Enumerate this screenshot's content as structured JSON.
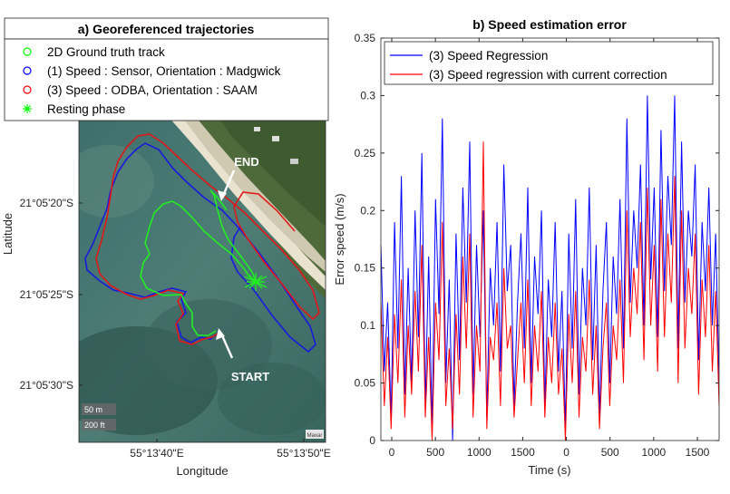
{
  "chart_data": [
    {
      "type": "map",
      "title": "a) Georeferenced trajectories",
      "xlabel": "Longitude",
      "ylabel": "Latitude",
      "x_ticks": [
        "55°13'40\"E",
        "55°13'50\"E"
      ],
      "y_ticks": [
        "21°05'20\"S",
        "21°05'25\"S",
        "21°05'30\"S"
      ],
      "legend": [
        {
          "label": "2D Ground truth track",
          "color": "#00ff00",
          "marker": "circle"
        },
        {
          "label": "(1) Speed : Sensor, Orientation : Madgwick",
          "color": "#0000ff",
          "marker": "circle"
        },
        {
          "label": "(3) Speed : ODBA, Orientation : SAAM",
          "color": "#ff0000",
          "marker": "circle"
        },
        {
          "label": "Resting phase",
          "color": "#00ff00",
          "marker": "asterisk"
        }
      ],
      "annotations": {
        "end": "END",
        "start": "START"
      },
      "scale": {
        "m": "50 m",
        "ft": "200 ft"
      },
      "attribution": "Maxar",
      "colors": {
        "ground_truth": "#22ee22",
        "madgwick": "#1a1adc",
        "saam": "#e01818"
      }
    },
    {
      "type": "line",
      "title": "b) Speed estimation error",
      "xlabel": "Time (s)",
      "ylabel": "Error speed (m/s)",
      "ylim": [
        0,
        0.35
      ],
      "x_tick_labels": [
        "0",
        "500",
        "1000",
        "1500",
        "0",
        "500",
        "1000",
        "1500"
      ],
      "y_tick_labels": [
        "0",
        "0.05",
        "0.1",
        "0.15",
        "0.2",
        "0.25",
        "0.3",
        "0.35"
      ],
      "grid": false,
      "legend_position": "top",
      "series": [
        {
          "name": "(3) Speed Regression",
          "color": "#0000ff",
          "values": [
            0.17,
            0.06,
            0.12,
            0.02,
            0.19,
            0.08,
            0.23,
            0.04,
            0.15,
            0.05,
            0.2,
            0.09,
            0.25,
            0.03,
            0.16,
            0.01,
            0.21,
            0.11,
            0.28,
            0.05,
            0.14,
            0.0,
            0.18,
            0.07,
            0.22,
            0.12,
            0.26,
            0.04,
            0.17,
            0.09,
            0.2,
            0.02,
            0.15,
            0.1,
            0.19,
            0.06,
            0.24,
            0.13,
            0.17,
            0.03,
            0.12,
            0.18,
            0.08,
            0.22,
            0.05,
            0.16,
            0.11,
            0.2,
            0.03,
            0.14,
            0.09,
            0.19,
            0.06,
            0.13,
            0.01,
            0.18,
            0.08,
            0.21,
            0.04,
            0.15,
            0.1,
            0.22,
            0.07,
            0.17,
            0.02,
            0.13,
            0.19,
            0.05,
            0.16,
            0.11,
            0.21,
            0.08,
            0.28,
            0.12,
            0.2,
            0.15,
            0.24,
            0.1,
            0.3,
            0.14,
            0.22,
            0.09,
            0.27,
            0.13,
            0.23,
            0.17,
            0.3,
            0.08,
            0.26,
            0.12,
            0.2,
            0.16,
            0.24,
            0.07,
            0.19,
            0.13,
            0.22,
            0.1,
            0.18,
            0.05
          ]
        },
        {
          "name": "(3) Speed regression with current correction",
          "color": "#ff0000",
          "values": [
            0.12,
            0.03,
            0.09,
            0.01,
            0.11,
            0.05,
            0.14,
            0.02,
            0.1,
            0.04,
            0.13,
            0.06,
            0.17,
            0.02,
            0.09,
            0.0,
            0.12,
            0.07,
            0.19,
            0.03,
            0.08,
            0.01,
            0.11,
            0.04,
            0.16,
            0.08,
            0.18,
            0.02,
            0.1,
            0.06,
            0.26,
            0.01,
            0.09,
            0.07,
            0.12,
            0.03,
            0.15,
            0.08,
            0.1,
            0.02,
            0.07,
            0.12,
            0.05,
            0.14,
            0.03,
            0.1,
            0.06,
            0.13,
            0.02,
            0.09,
            0.05,
            0.12,
            0.04,
            0.08,
            0.0,
            0.11,
            0.05,
            0.13,
            0.02,
            0.09,
            0.06,
            0.14,
            0.04,
            0.1,
            0.01,
            0.08,
            0.12,
            0.03,
            0.1,
            0.07,
            0.14,
            0.05,
            0.2,
            0.09,
            0.15,
            0.11,
            0.19,
            0.07,
            0.22,
            0.1,
            0.17,
            0.06,
            0.21,
            0.09,
            0.18,
            0.12,
            0.23,
            0.05,
            0.2,
            0.08,
            0.15,
            0.11,
            0.18,
            0.04,
            0.14,
            0.09,
            0.17,
            0.06,
            0.13,
            0.03
          ]
        }
      ]
    }
  ]
}
